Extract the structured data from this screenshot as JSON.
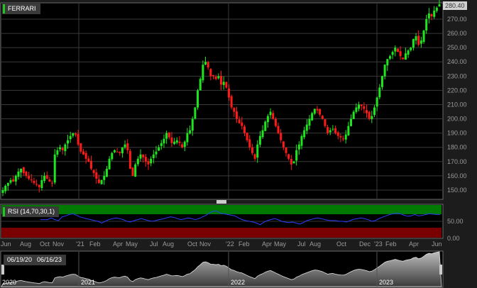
{
  "symbol_label": "FERRARI",
  "last_price_label": "280.40",
  "indicator_label": "RSI (14,70,30,1)",
  "navigator": {
    "start_date": "06/19/20",
    "end_date": "06/16/23",
    "years": [
      "2020",
      "2021",
      "2022",
      "2023"
    ]
  },
  "colors": {
    "up": "#1ee61e",
    "down": "#ff1a1a",
    "rsi_line": "#2a3cff",
    "overbought": "#007a00",
    "oversold": "#7a0000"
  },
  "chart_data": [
    {
      "type": "candlestick",
      "title": "FERRARI",
      "ylim": [
        145,
        282
      ],
      "y_ticks": [
        "150.00",
        "160.00",
        "170.00",
        "180.00",
        "190.00",
        "200.00",
        "210.00",
        "220.00",
        "230.00",
        "240.00",
        "250.00",
        "260.00",
        "270.00"
      ],
      "x_ticks": [
        "Jun",
        "Aug",
        "Oct",
        "Nov",
        "'21",
        "Feb",
        "Apr",
        "May",
        "Jul",
        "Aug",
        "Oct",
        "Nov",
        "'22",
        "Feb",
        "Apr",
        "May",
        "Jul",
        "Aug",
        "Oct",
        "Dec",
        "'23",
        "Feb",
        "Apr",
        "Jun"
      ],
      "period": "weekly",
      "date_range": [
        "06/19/20",
        "06/16/23"
      ],
      "close": [
        150,
        153,
        155,
        157,
        156,
        160,
        163,
        165,
        162,
        160,
        158,
        157,
        155,
        154,
        152,
        157,
        160,
        158,
        156,
        155,
        175,
        178,
        180,
        178,
        182,
        185,
        188,
        190,
        189,
        182,
        177,
        175,
        172,
        170,
        165,
        162,
        158,
        155,
        157,
        160,
        165,
        172,
        176,
        178,
        177,
        176,
        180,
        182,
        178,
        165,
        160,
        168,
        172,
        175,
        173,
        170,
        168,
        172,
        175,
        177,
        180,
        183,
        186,
        190,
        187,
        183,
        184,
        185,
        183,
        180,
        184,
        190,
        192,
        200,
        208,
        220,
        228,
        238,
        240,
        236,
        230,
        230,
        228,
        230,
        224,
        226,
        222,
        215,
        208,
        205,
        200,
        197,
        195,
        190,
        185,
        180,
        176,
        172,
        182,
        188,
        192,
        198,
        202,
        205,
        200,
        195,
        190,
        185,
        180,
        176,
        172,
        168,
        170,
        178,
        182,
        188,
        192,
        196,
        200,
        204,
        207,
        206,
        203,
        200,
        195,
        190,
        192,
        193,
        190,
        188,
        187,
        186,
        189,
        195,
        200,
        205,
        208,
        210,
        209,
        207,
        204,
        200,
        202,
        208,
        215,
        222,
        230,
        238,
        242,
        244,
        247,
        250,
        247,
        244,
        242,
        246,
        248,
        250,
        256,
        258,
        252,
        255,
        262,
        270,
        274,
        272,
        276,
        278,
        280.4
      ],
      "tick_labels_seen": "prices 150-280"
    },
    {
      "type": "line",
      "title": "RSI (14,70,30,1)",
      "ylim": [
        0,
        100
      ],
      "y_ticks": [
        "50.00",
        "0.00"
      ],
      "bands": {
        "overbought": [
          70,
          100
        ],
        "oversold": [
          0,
          30
        ]
      },
      "start": "Oct 2020",
      "values": [
        55,
        55,
        55,
        60,
        55,
        52,
        63,
        66,
        70,
        72,
        68,
        63,
        60,
        57,
        55,
        52,
        50,
        45,
        50,
        55,
        58,
        60,
        58,
        55,
        50,
        48,
        52,
        55,
        58,
        55,
        52,
        50,
        52,
        55,
        57,
        60,
        63,
        62,
        58,
        55,
        57,
        60,
        58,
        55,
        58,
        63,
        68,
        75,
        80,
        80,
        74,
        72,
        70,
        68,
        66,
        60,
        55,
        52,
        50,
        48,
        45,
        40,
        47,
        52,
        55,
        58,
        55,
        50,
        48,
        46,
        48,
        45,
        42,
        46,
        52,
        55,
        58,
        60,
        58,
        55,
        53,
        52,
        52,
        50,
        50,
        48,
        52,
        56,
        58,
        60,
        58,
        55,
        50,
        52,
        58,
        62,
        66,
        70,
        72,
        74,
        72,
        68,
        65,
        66,
        70,
        66,
        67,
        70,
        72,
        71,
        70,
        70
      ]
    }
  ]
}
